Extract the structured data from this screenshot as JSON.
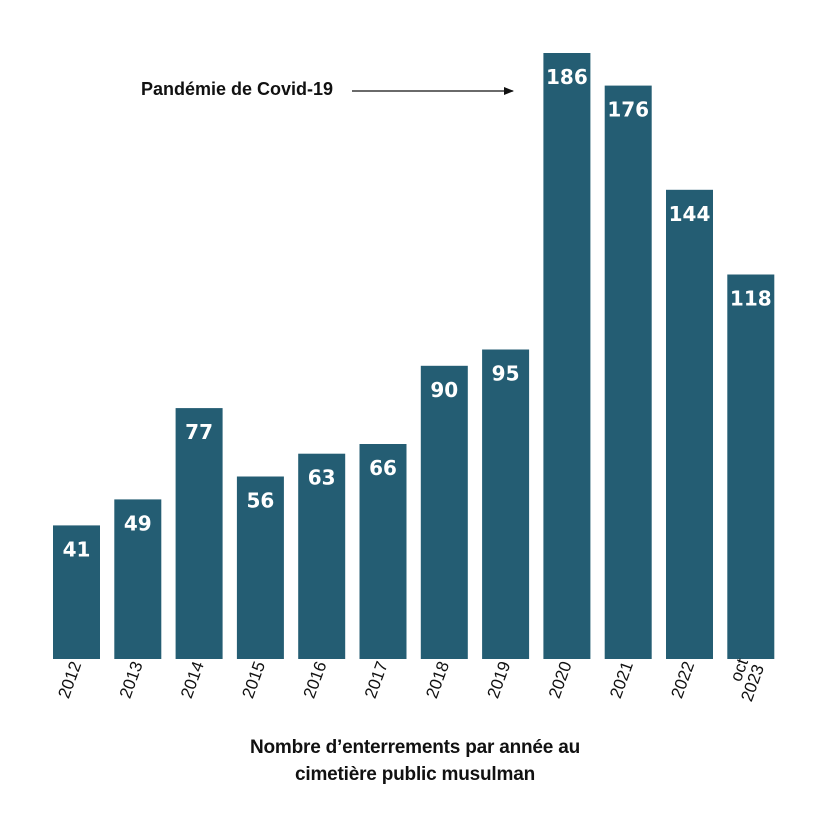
{
  "chart_data": {
    "type": "bar",
    "categories": [
      "2012",
      "2013",
      "2014",
      "2015",
      "2016",
      "2017",
      "2018",
      "2019",
      "2020",
      "2021",
      "2022",
      "oct 2023"
    ],
    "category_lines": [
      [
        "2012"
      ],
      [
        "2013"
      ],
      [
        "2014"
      ],
      [
        "2015"
      ],
      [
        "2016"
      ],
      [
        "2017"
      ],
      [
        "2018"
      ],
      [
        "2019"
      ],
      [
        "2020"
      ],
      [
        "2021"
      ],
      [
        "2022"
      ],
      [
        "oct",
        "2023"
      ]
    ],
    "values": [
      41,
      49,
      77,
      56,
      63,
      66,
      90,
      95,
      186,
      176,
      144,
      118
    ],
    "data_labels": [
      "41",
      "49",
      "77",
      "56",
      "63",
      "66",
      "90",
      "95",
      "186",
      "176",
      "144",
      "118"
    ],
    "title_lines": [
      "Nombre d’enterrements par année au",
      "cimetière public musulman"
    ],
    "xlabel": "",
    "ylabel": "",
    "ylim": [
      0,
      186
    ],
    "grid": false,
    "legend": "none",
    "bar_color": "#245d73",
    "label_color": "#ffffff",
    "annotation": {
      "text": "Pandémie de Covid-19",
      "target_category": "2020"
    }
  }
}
